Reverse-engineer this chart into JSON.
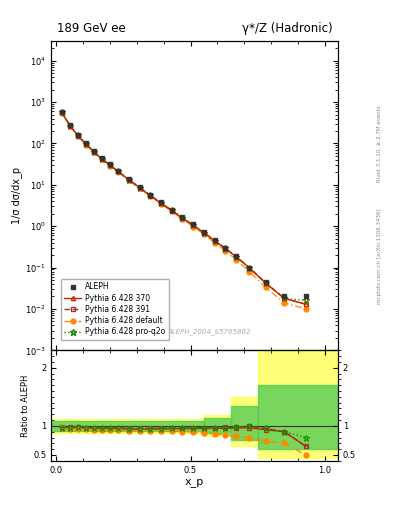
{
  "title_left": "189 GeV ee",
  "title_right": "γ*/Z (Hadronic)",
  "xlabel": "x_p",
  "ylabel_main": "1/σ dσ/dx_p",
  "ylabel_ratio": "Ratio to ALEPH",
  "watermark": "ALEPH_2004_S5765862",
  "right_label": "Rivet 3.1.10, ≥ 2.7M events",
  "arxiv_label": "mcplots.cern.ch [arXiv:1306.3436]",
  "xp": [
    0.02,
    0.05,
    0.08,
    0.11,
    0.14,
    0.17,
    0.2,
    0.23,
    0.27,
    0.31,
    0.35,
    0.39,
    0.43,
    0.47,
    0.51,
    0.55,
    0.59,
    0.63,
    0.67,
    0.72,
    0.78,
    0.85,
    0.93
  ],
  "aleph_y": [
    580,
    280,
    160,
    100,
    65,
    44,
    31,
    22,
    14,
    9.0,
    5.8,
    3.8,
    2.5,
    1.65,
    1.1,
    0.72,
    0.46,
    0.3,
    0.19,
    0.1,
    0.045,
    0.02,
    0.02
  ],
  "py370_y": [
    560,
    270,
    155,
    96,
    62,
    42,
    29.5,
    21,
    13.2,
    8.5,
    5.5,
    3.6,
    2.38,
    1.57,
    1.05,
    0.69,
    0.44,
    0.288,
    0.183,
    0.097,
    0.042,
    0.018,
    0.013
  ],
  "py391_y": [
    565,
    273,
    157,
    97,
    63,
    42.5,
    30,
    21.3,
    13.4,
    8.6,
    5.55,
    3.65,
    2.41,
    1.59,
    1.06,
    0.7,
    0.447,
    0.292,
    0.186,
    0.099,
    0.043,
    0.018,
    0.013
  ],
  "pydef_y": [
    555,
    266,
    152,
    94,
    61,
    41,
    28.8,
    20.4,
    12.8,
    8.2,
    5.3,
    3.47,
    2.28,
    1.49,
    0.98,
    0.63,
    0.395,
    0.253,
    0.156,
    0.08,
    0.033,
    0.014,
    0.01
  ],
  "pyq2o_y": [
    562,
    271,
    156,
    97,
    62.5,
    42.2,
    29.8,
    21.1,
    13.3,
    8.55,
    5.52,
    3.63,
    2.4,
    1.58,
    1.055,
    0.695,
    0.445,
    0.291,
    0.185,
    0.099,
    0.043,
    0.018,
    0.016
  ],
  "ratio_xp": [
    0.02,
    0.05,
    0.08,
    0.11,
    0.14,
    0.17,
    0.2,
    0.23,
    0.27,
    0.31,
    0.35,
    0.39,
    0.43,
    0.47,
    0.51,
    0.55,
    0.59,
    0.63,
    0.67,
    0.72,
    0.78,
    0.85,
    0.93
  ],
  "ratio_py370": [
    0.966,
    0.964,
    0.969,
    0.96,
    0.954,
    0.955,
    0.952,
    0.955,
    0.943,
    0.944,
    0.948,
    0.947,
    0.952,
    0.952,
    0.955,
    0.958,
    0.957,
    0.96,
    0.963,
    0.97,
    0.933,
    0.9,
    0.65
  ],
  "ratio_py391": [
    0.974,
    0.975,
    0.981,
    0.97,
    0.969,
    0.966,
    0.968,
    0.968,
    0.957,
    0.956,
    0.957,
    0.961,
    0.964,
    0.964,
    0.964,
    0.972,
    0.972,
    0.973,
    0.979,
    0.99,
    0.956,
    0.9,
    0.65
  ],
  "ratio_pydef": [
    0.957,
    0.95,
    0.95,
    0.94,
    0.938,
    0.932,
    0.929,
    0.927,
    0.914,
    0.911,
    0.914,
    0.913,
    0.912,
    0.903,
    0.891,
    0.875,
    0.859,
    0.843,
    0.821,
    0.8,
    0.733,
    0.7,
    0.5
  ],
  "ratio_pyq2o": [
    0.969,
    0.968,
    0.975,
    0.97,
    0.962,
    0.959,
    0.961,
    0.959,
    0.95,
    0.95,
    0.952,
    0.955,
    0.96,
    0.958,
    0.959,
    0.965,
    0.967,
    0.97,
    0.974,
    0.99,
    0.956,
    0.9,
    0.8
  ],
  "color_aleph": "#333333",
  "color_py370": "#cc2200",
  "color_py391": "#993333",
  "color_pydef": "#ff8800",
  "color_pyq2o": "#228800",
  "ylim_main": [
    0.001,
    30000.0
  ],
  "ylim_ratio": [
    0.4,
    2.3
  ],
  "legend_entries": [
    "ALEPH",
    "Pythia 6.428 370",
    "Pythia 6.428 391",
    "Pythia 6.428 default",
    "Pythia 6.428 pro-q2o"
  ]
}
